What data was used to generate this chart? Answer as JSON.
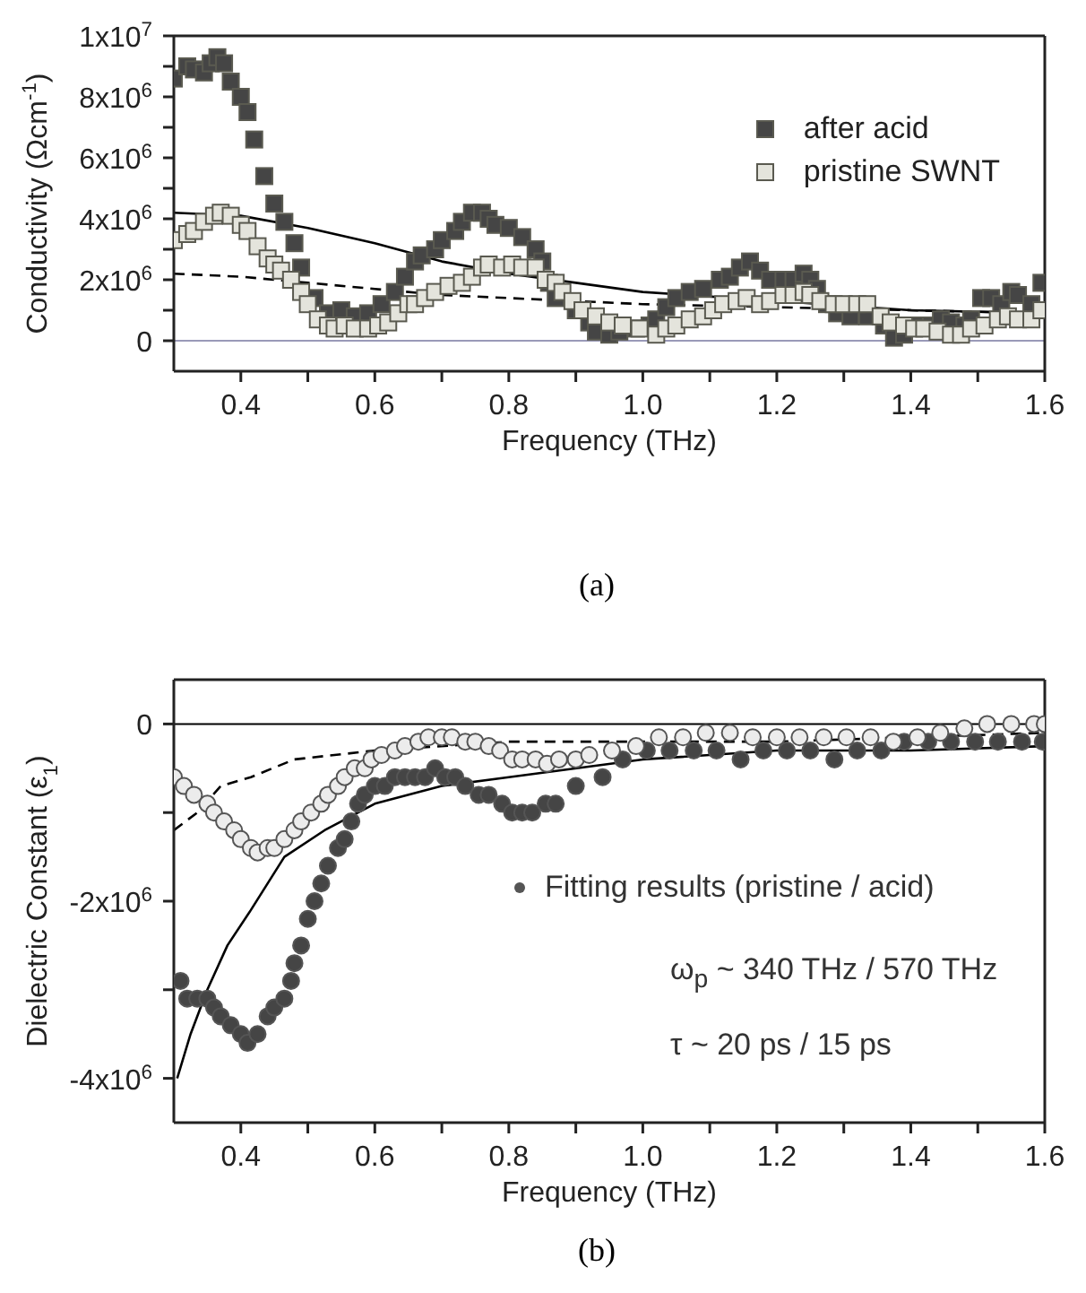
{
  "chart_data": [
    {
      "type": "scatter",
      "title": "(a)",
      "xlabel": "Frequency (THz)",
      "ylabel": "Conductivity (Ωcm$^{-1}$)",
      "legend": "top right",
      "xlim": [
        0.3,
        1.6
      ],
      "ylim": [
        -1000000,
        10000000
      ],
      "xticks": [
        {
          "value": 0.4,
          "label": "0.4"
        },
        {
          "value": 0.5,
          "label": null
        },
        {
          "value": 0.6,
          "label": "0.6"
        },
        {
          "value": 0.7,
          "label": null
        },
        {
          "value": 0.8,
          "label": "0.8"
        },
        {
          "value": 0.9,
          "label": null
        },
        {
          "value": 1.0,
          "label": "1.0"
        },
        {
          "value": 1.1,
          "label": null
        },
        {
          "value": 1.2,
          "label": "1.2"
        },
        {
          "value": 1.3,
          "label": null
        },
        {
          "value": 1.4,
          "label": "1.4"
        },
        {
          "value": 1.5,
          "label": null
        },
        {
          "value": 1.6,
          "label": "1.6"
        }
      ],
      "yticks": [
        0,
        {
          "value": 1000000,
          "label": null
        },
        {
          "value": 2000000,
          "label": "2x10$^{6}$"
        },
        {
          "value": 3000000,
          "label": null
        },
        {
          "value": 4000000,
          "label": "4x10$^{6}$"
        },
        {
          "value": 5000000,
          "label": null
        },
        {
          "value": 6000000,
          "label": "6x10$^{6}$"
        },
        {
          "value": 7000000,
          "label": null
        },
        {
          "value": 8000000,
          "label": "8x10$^{6}$"
        },
        {
          "value": 9000000,
          "label": null
        },
        {
          "value": 10000000,
          "label": "1x10$^{7}$"
        }
      ],
      "ref_lines": [
        {
          "axis": "y",
          "value": 0,
          "label": null,
          "color": "#9a9ab8",
          "line_style": "solid"
        }
      ],
      "series": [
        {
          "name": "after acid",
          "marker": "square",
          "color": "#454545",
          "x": [
            0.3,
            0.32,
            0.33,
            0.345,
            0.355,
            0.365,
            0.375,
            0.385,
            0.4,
            0.41,
            0.42,
            0.435,
            0.45,
            0.465,
            0.48,
            0.49,
            0.51,
            0.53,
            0.55,
            0.57,
            0.59,
            0.61,
            0.63,
            0.645,
            0.66,
            0.67,
            0.69,
            0.7,
            0.72,
            0.73,
            0.745,
            0.76,
            0.77,
            0.78,
            0.8,
            0.82,
            0.84,
            0.85,
            0.86,
            0.87,
            0.9,
            0.92,
            0.93,
            0.95,
            0.965,
            0.99,
            1.01,
            1.02,
            1.035,
            1.05,
            1.07,
            1.09,
            1.115,
            1.13,
            1.145,
            1.16,
            1.175,
            1.19,
            1.21,
            1.225,
            1.24,
            1.25,
            1.26,
            1.275,
            1.29,
            1.31,
            1.335,
            1.36,
            1.375,
            1.39,
            1.41,
            1.43,
            1.445,
            1.46,
            1.48,
            1.49,
            1.505,
            1.52,
            1.535,
            1.55,
            1.56,
            1.58,
            1.595
          ],
          "values": [
            8600000,
            9000000,
            8900000,
            8800000,
            9100000,
            9300000,
            9100000,
            8500000,
            8000000,
            7500000,
            6600000,
            5400000,
            4500000,
            3900000,
            3200000,
            2400000,
            1400000,
            900000,
            1000000,
            800000,
            900000,
            1200000,
            1600000,
            2100000,
            2600000,
            2800000,
            3000000,
            3300000,
            3600000,
            3900000,
            4200000,
            4200000,
            4000000,
            3800000,
            3700000,
            3400000,
            3000000,
            2600000,
            1900000,
            1400000,
            1000000,
            600000,
            300000,
            200000,
            300000,
            400000,
            500000,
            700000,
            1100000,
            1400000,
            1600000,
            1700000,
            2000000,
            2100000,
            2400000,
            2600000,
            2300000,
            2000000,
            2000000,
            2000000,
            2200000,
            2000000,
            1700000,
            1200000,
            900000,
            800000,
            800000,
            500000,
            100000,
            200000,
            500000,
            500000,
            700000,
            600000,
            500000,
            700000,
            1400000,
            1400000,
            1200000,
            1600000,
            1500000,
            1200000,
            1900000
          ]
        },
        {
          "name": "pristine SWNT",
          "marker": "square",
          "color": "#e4e4dc",
          "x": [
            0.3,
            0.32,
            0.33,
            0.345,
            0.36,
            0.37,
            0.385,
            0.4,
            0.41,
            0.425,
            0.44,
            0.45,
            0.46,
            0.475,
            0.49,
            0.5,
            0.515,
            0.53,
            0.54,
            0.555,
            0.57,
            0.59,
            0.605,
            0.62,
            0.635,
            0.65,
            0.66,
            0.675,
            0.69,
            0.71,
            0.73,
            0.745,
            0.76,
            0.77,
            0.79,
            0.805,
            0.82,
            0.84,
            0.855,
            0.87,
            0.88,
            0.895,
            0.91,
            0.93,
            0.95,
            0.97,
            0.995,
            1.02,
            1.035,
            1.05,
            1.07,
            1.09,
            1.105,
            1.12,
            1.14,
            1.155,
            1.175,
            1.19,
            1.21,
            1.225,
            1.24,
            1.25,
            1.265,
            1.285,
            1.3,
            1.32,
            1.335,
            1.355,
            1.37,
            1.39,
            1.405,
            1.42,
            1.44,
            1.46,
            1.475,
            1.49,
            1.51,
            1.53,
            1.545,
            1.56,
            1.58,
            1.595
          ],
          "values": [
            3300000,
            3500000,
            3600000,
            3900000,
            4100000,
            4200000,
            4100000,
            3800000,
            3600000,
            3100000,
            2700000,
            2500000,
            2300000,
            2000000,
            1600000,
            1200000,
            700000,
            500000,
            400000,
            500000,
            400000,
            400000,
            500000,
            600000,
            900000,
            1200000,
            1200000,
            1400000,
            1600000,
            1800000,
            1900000,
            2100000,
            2400000,
            2500000,
            2400000,
            2500000,
            2400000,
            2400000,
            2000000,
            1900000,
            1600000,
            1300000,
            1000000,
            800000,
            600000,
            500000,
            400000,
            200000,
            400000,
            500000,
            700000,
            800000,
            1000000,
            1200000,
            1300000,
            1400000,
            1200000,
            1300000,
            1500000,
            1500000,
            1600000,
            1500000,
            1300000,
            1200000,
            1200000,
            1200000,
            1200000,
            800000,
            600000,
            500000,
            400000,
            400000,
            300000,
            200000,
            200000,
            400000,
            500000,
            700000,
            800000,
            700000,
            700000,
            1000000
          ]
        },
        {
          "type": "line",
          "line_style": "solid",
          "marker": "none",
          "color": "#000000",
          "x": [
            0.3,
            0.4,
            0.5,
            0.6,
            0.7,
            0.8,
            0.9,
            1.0,
            1.2,
            1.4,
            1.6
          ],
          "values": [
            4200000,
            4100000,
            3700000,
            3200000,
            2600000,
            2200000,
            1900000,
            1600000,
            1300000,
            1000000,
            900000
          ]
        },
        {
          "type": "line",
          "line_style": "dashed",
          "marker": "none",
          "color": "#000000",
          "x": [
            0.3,
            0.4,
            0.5,
            0.6,
            0.7,
            0.8,
            0.9,
            1.0,
            1.2,
            1.4,
            1.6
          ],
          "values": [
            2200000,
            2100000,
            1900000,
            1700000,
            1500000,
            1400000,
            1300000,
            1200000,
            1100000,
            1000000,
            900000
          ]
        }
      ]
    },
    {
      "type": "scatter",
      "title": "(b)",
      "xlabel": "Frequency (THz)",
      "ylabel": "Dielectric Constant (ε$_{1}$)",
      "annotations": [
        "Fitting results (pristine / acid)",
        "ω$_{p}$ ~ 340 THz / 570 THz",
        "τ ~ 20 ps / 15 ps"
      ],
      "xlim": [
        0.3,
        1.6
      ],
      "ylim": [
        -4500000,
        500000
      ],
      "xticks": [
        {
          "value": 0.4,
          "label": "0.4"
        },
        {
          "value": 0.5,
          "label": null
        },
        {
          "value": 0.6,
          "label": "0.6"
        },
        {
          "value": 0.7,
          "label": null
        },
        {
          "value": 0.8,
          "label": "0.8"
        },
        {
          "value": 0.9,
          "label": null
        },
        {
          "value": 1.0,
          "label": "1.0"
        },
        {
          "value": 1.1,
          "label": null
        },
        {
          "value": 1.2,
          "label": "1.2"
        },
        {
          "value": 1.3,
          "label": null
        },
        {
          "value": 1.4,
          "label": "1.4"
        },
        {
          "value": 1.5,
          "label": null
        },
        {
          "value": 1.6,
          "label": "1.6"
        }
      ],
      "yticks": [
        {
          "value": -4000000,
          "label": "-4x10$^{6}$"
        },
        {
          "value": -3000000,
          "label": null
        },
        {
          "value": -2000000,
          "label": "-2x10$^{6}$"
        },
        {
          "value": -1000000,
          "label": null
        },
        0
      ],
      "ref_lines": [
        {
          "axis": "y",
          "value": 0,
          "label": null,
          "color": "#000000",
          "line_style": "solid"
        }
      ],
      "series": [
        {
          "marker": "circle",
          "color": "#454545",
          "x": [
            0.31,
            0.32,
            0.335,
            0.35,
            0.36,
            0.37,
            0.385,
            0.4,
            0.41,
            0.425,
            0.44,
            0.45,
            0.465,
            0.475,
            0.48,
            0.49,
            0.5,
            0.51,
            0.52,
            0.53,
            0.545,
            0.555,
            0.565,
            0.575,
            0.585,
            0.6,
            0.615,
            0.63,
            0.645,
            0.66,
            0.675,
            0.69,
            0.705,
            0.72,
            0.735,
            0.755,
            0.77,
            0.79,
            0.805,
            0.82,
            0.835,
            0.855,
            0.87,
            0.9,
            0.94,
            0.97,
            1.006,
            1.04,
            1.076,
            1.11,
            1.146,
            1.18,
            1.215,
            1.25,
            1.286,
            1.32,
            1.356,
            1.39,
            1.426,
            1.46,
            1.496,
            1.53,
            1.566,
            1.597
          ],
          "values": [
            -2900000,
            -3100000,
            -3100000,
            -3100000,
            -3200000,
            -3300000,
            -3400000,
            -3500000,
            -3600000,
            -3500000,
            -3300000,
            -3200000,
            -3100000,
            -2900000,
            -2700000,
            -2500000,
            -2200000,
            -2000000,
            -1800000,
            -1600000,
            -1400000,
            -1300000,
            -1100000,
            -900000,
            -800000,
            -700000,
            -700000,
            -600000,
            -600000,
            -600000,
            -600000,
            -500000,
            -600000,
            -600000,
            -700000,
            -800000,
            -800000,
            -900000,
            -1000000,
            -1000000,
            -1000000,
            -900000,
            -900000,
            -700000,
            -600000,
            -400000,
            -300000,
            -300000,
            -300000,
            -300000,
            -400000,
            -300000,
            -300000,
            -300000,
            -400000,
            -300000,
            -300000,
            -200000,
            -200000,
            -200000,
            -200000,
            -200000,
            -200000,
            -200000
          ]
        },
        {
          "marker": "circle",
          "color": "#ececec",
          "x": [
            0.3,
            0.315,
            0.33,
            0.35,
            0.36,
            0.375,
            0.39,
            0.4,
            0.415,
            0.425,
            0.44,
            0.45,
            0.465,
            0.48,
            0.49,
            0.505,
            0.52,
            0.53,
            0.545,
            0.555,
            0.57,
            0.585,
            0.595,
            0.61,
            0.63,
            0.645,
            0.665,
            0.68,
            0.7,
            0.715,
            0.735,
            0.75,
            0.77,
            0.787,
            0.805,
            0.82,
            0.84,
            0.857,
            0.875,
            0.9,
            0.92,
            0.954,
            0.99,
            1.024,
            1.06,
            1.094,
            1.13,
            1.164,
            1.2,
            1.234,
            1.27,
            1.304,
            1.34,
            1.374,
            1.41,
            1.444,
            1.48,
            1.514,
            1.55,
            1.584,
            1.6
          ],
          "values": [
            -600000,
            -700000,
            -800000,
            -900000,
            -1000000,
            -1100000,
            -1200000,
            -1300000,
            -1400000,
            -1450000,
            -1400000,
            -1400000,
            -1300000,
            -1200000,
            -1100000,
            -1000000,
            -900000,
            -800000,
            -700000,
            -600000,
            -500000,
            -500000,
            -400000,
            -350000,
            -300000,
            -250000,
            -200000,
            -150000,
            -150000,
            -150000,
            -200000,
            -200000,
            -250000,
            -300000,
            -400000,
            -400000,
            -400000,
            -450000,
            -400000,
            -400000,
            -350000,
            -300000,
            -250000,
            -150000,
            -150000,
            -100000,
            -100000,
            -150000,
            -150000,
            -150000,
            -150000,
            -150000,
            -150000,
            -200000,
            -150000,
            -100000,
            -50000,
            0,
            0,
            0,
            0
          ]
        },
        {
          "type": "line",
          "line_style": "solid",
          "marker": "none",
          "color": "#000000",
          "x": [
            0.305,
            0.325,
            0.35,
            0.38,
            0.415,
            0.465,
            0.525,
            0.6,
            0.7,
            0.8,
            1.0,
            1.2,
            1.4,
            1.6
          ],
          "values": [
            -4000000,
            -3500000,
            -3000000,
            -2500000,
            -2100000,
            -1500000,
            -1200000,
            -900000,
            -700000,
            -600000,
            -400000,
            -300000,
            -300000,
            -250000
          ]
        },
        {
          "type": "line",
          "line_style": "dashed",
          "marker": "none",
          "color": "#000000",
          "x": [
            0.3,
            0.335,
            0.37,
            0.415,
            0.48,
            0.6,
            0.8,
            1.0,
            1.2,
            1.6
          ],
          "values": [
            -1200000,
            -1000000,
            -700000,
            -600000,
            -400000,
            -300000,
            -200000,
            -200000,
            -200000,
            -100000
          ]
        }
      ]
    }
  ]
}
